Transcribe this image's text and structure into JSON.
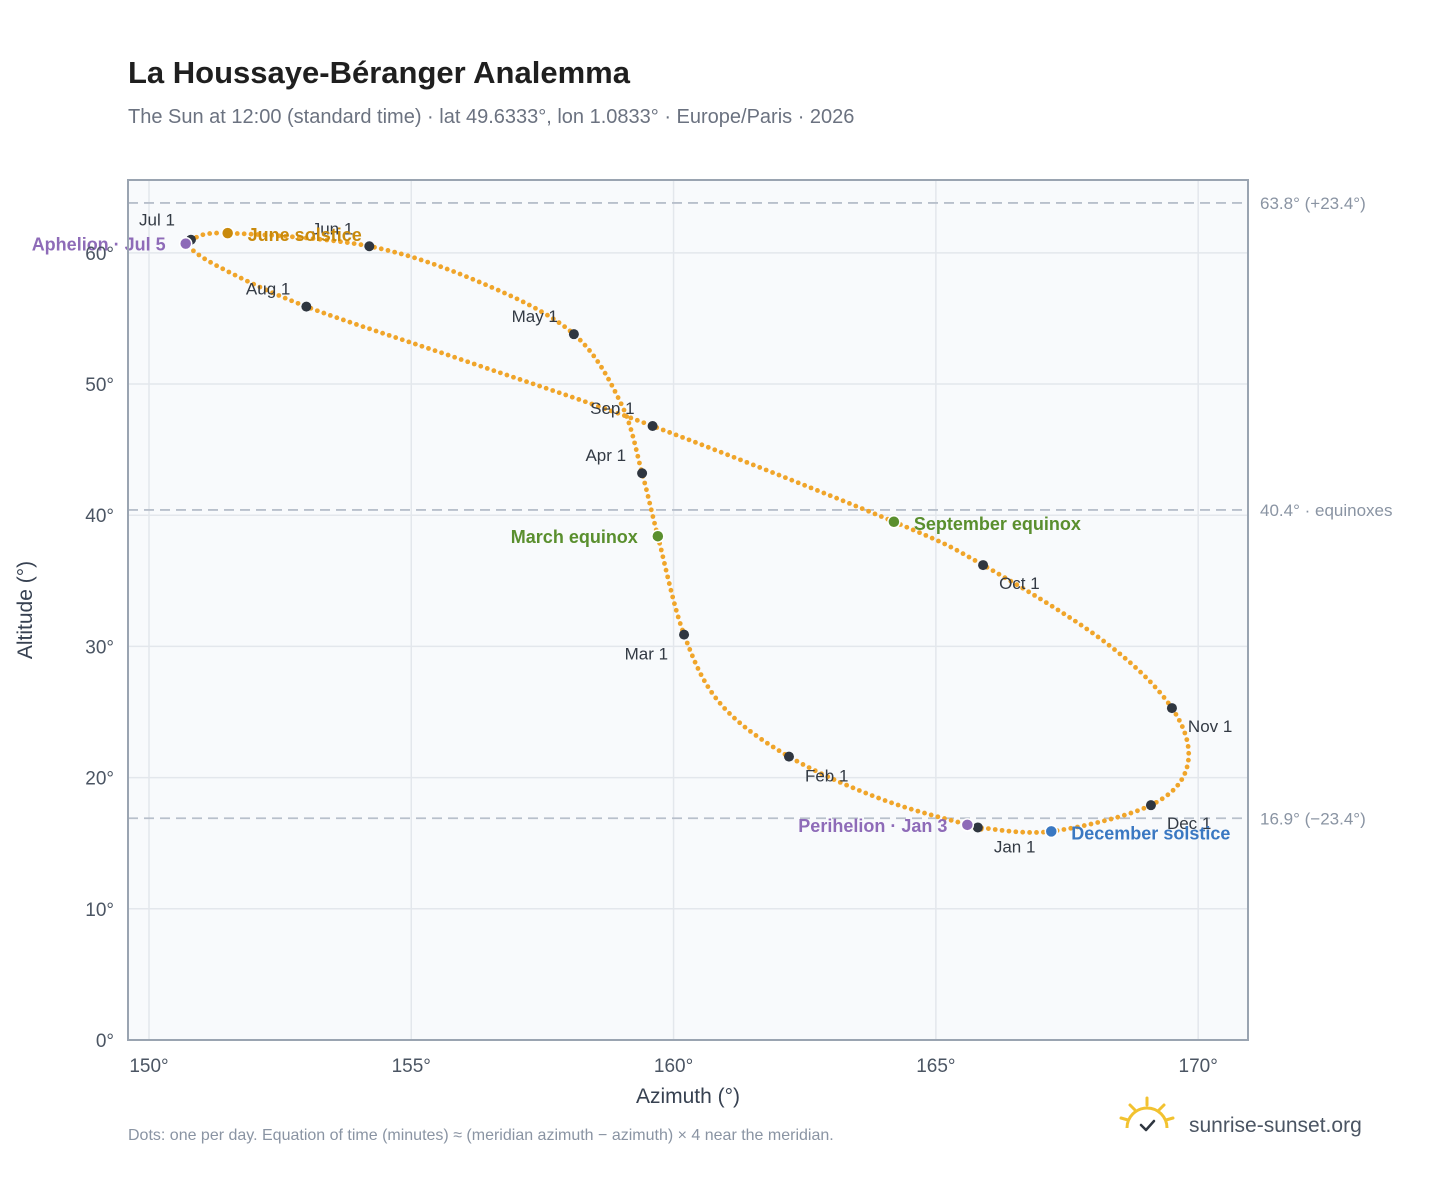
{
  "title": "La Houssaye-Béranger Analemma",
  "subtitle": "The Sun at 12:00 (standard time) · lat 49.6333°, lon 1.0833° · Europe/Paris · 2026",
  "footnote": "Dots: one per day. Equation of time (minutes) ≈ (meridian azimuth − azimuth) × 4 near the meridian.",
  "brand": {
    "name": "sunrise-sunset.org",
    "icon": "sun-logo-icon"
  },
  "colors": {
    "path": "#f0a52a",
    "month_dot": "#2f3640",
    "equinox": "#5a8f2e",
    "solstice_june": "#c98a0c",
    "solstice_december": "#3a78c2",
    "apsis": "#8e6bb8",
    "grid": "#e3e7ec",
    "plot_bg": "#f8fafc",
    "frame": "#9aa4b1",
    "reference_line": "#b8c0cb"
  },
  "chart_data": {
    "type": "scatter",
    "xlabel": "Azimuth (°)",
    "ylabel": "Altitude (°)",
    "xlim": [
      149.6,
      170.95
    ],
    "ylim": [
      0,
      65.55
    ],
    "xticks": [
      150,
      155,
      160,
      165,
      170
    ],
    "yticks": [
      0,
      10,
      20,
      30,
      40,
      50,
      60
    ],
    "x_tick_labels": [
      "150°",
      "155°",
      "160°",
      "165°",
      "170°"
    ],
    "y_tick_labels": [
      "0°",
      "10°",
      "20°",
      "30°",
      "40°",
      "50°",
      "60°"
    ],
    "grid": true,
    "reference_lines": [
      {
        "altitude": 63.8,
        "label": "63.8° (+23.4°)"
      },
      {
        "altitude": 40.4,
        "label": "40.4° · equinoxes"
      },
      {
        "altitude": 16.9,
        "label": "16.9° (−23.4°)"
      }
    ],
    "month_points": [
      {
        "label": "Jan 1",
        "date": "2026-01-01",
        "azimuth": 165.8,
        "altitude": 16.2
      },
      {
        "label": "Feb 1",
        "date": "2026-02-01",
        "azimuth": 162.2,
        "altitude": 21.6
      },
      {
        "label": "Mar 1",
        "date": "2026-03-01",
        "azimuth": 160.2,
        "altitude": 30.9
      },
      {
        "label": "Apr 1",
        "date": "2026-04-01",
        "azimuth": 159.4,
        "altitude": 43.2
      },
      {
        "label": "May 1",
        "date": "2026-05-01",
        "azimuth": 158.1,
        "altitude": 53.8
      },
      {
        "label": "Jun 1",
        "date": "2026-06-01",
        "azimuth": 154.2,
        "altitude": 60.5
      },
      {
        "label": "Jul 1",
        "date": "2026-07-01",
        "azimuth": 150.8,
        "altitude": 61.0
      },
      {
        "label": "Aug 1",
        "date": "2026-08-01",
        "azimuth": 153.0,
        "altitude": 55.9
      },
      {
        "label": "Sep 1",
        "date": "2026-09-01",
        "azimuth": 159.6,
        "altitude": 46.8
      },
      {
        "label": "Oct 1",
        "date": "2026-10-01",
        "azimuth": 165.9,
        "altitude": 36.2
      },
      {
        "label": "Nov 1",
        "date": "2026-11-01",
        "azimuth": 169.5,
        "altitude": 25.3
      },
      {
        "label": "Dec 1",
        "date": "2026-12-01",
        "azimuth": 169.1,
        "altitude": 17.9
      }
    ],
    "events": [
      {
        "label": "March equinox",
        "kind": "equinox",
        "azimuth": 159.7,
        "altitude": 38.4
      },
      {
        "label": "June solstice",
        "kind": "solstice_june",
        "azimuth": 151.5,
        "altitude": 61.5
      },
      {
        "label": "September equinox",
        "kind": "equinox",
        "azimuth": 164.2,
        "altitude": 39.5
      },
      {
        "label": "December solstice",
        "kind": "solstice_december",
        "azimuth": 167.2,
        "altitude": 15.9
      },
      {
        "label": "Perihelion · Jan 3",
        "kind": "apsis",
        "azimuth": 165.6,
        "altitude": 16.4
      },
      {
        "label": "Aphelion · Jul 5",
        "kind": "apsis",
        "azimuth": 150.7,
        "altitude": 60.7
      }
    ],
    "path_samples": [
      {
        "date": "2026-01-01",
        "azimuth": 165.8,
        "altitude": 16.2
      },
      {
        "date": "2026-01-15",
        "azimuth": 164.0,
        "altitude": 18.3
      },
      {
        "date": "2026-02-01",
        "azimuth": 162.2,
        "altitude": 21.6
      },
      {
        "date": "2026-02-15",
        "azimuth": 160.9,
        "altitude": 25.6
      },
      {
        "date": "2026-03-01",
        "azimuth": 160.2,
        "altitude": 30.9
      },
      {
        "date": "2026-03-20",
        "azimuth": 159.7,
        "altitude": 38.4
      },
      {
        "date": "2026-04-01",
        "azimuth": 159.4,
        "altitude": 43.2
      },
      {
        "date": "2026-04-15",
        "azimuth": 159.0,
        "altitude": 48.5
      },
      {
        "date": "2026-05-01",
        "azimuth": 158.1,
        "altitude": 53.8
      },
      {
        "date": "2026-05-15",
        "azimuth": 156.4,
        "altitude": 57.6
      },
      {
        "date": "2026-06-01",
        "azimuth": 154.2,
        "altitude": 60.5
      },
      {
        "date": "2026-06-21",
        "azimuth": 151.5,
        "altitude": 61.5
      },
      {
        "date": "2026-07-01",
        "azimuth": 150.8,
        "altitude": 61.0
      },
      {
        "date": "2026-07-05",
        "azimuth": 150.7,
        "altitude": 60.7
      },
      {
        "date": "2026-07-15",
        "azimuth": 151.3,
        "altitude": 59.0
      },
      {
        "date": "2026-08-01",
        "azimuth": 153.0,
        "altitude": 55.9
      },
      {
        "date": "2026-08-15",
        "azimuth": 156.0,
        "altitude": 51.8
      },
      {
        "date": "2026-09-01",
        "azimuth": 159.6,
        "altitude": 46.8
      },
      {
        "date": "2026-09-23",
        "azimuth": 164.2,
        "altitude": 39.5
      },
      {
        "date": "2026-10-01",
        "azimuth": 165.9,
        "altitude": 36.2
      },
      {
        "date": "2026-10-15",
        "azimuth": 168.2,
        "altitude": 30.4
      },
      {
        "date": "2026-11-01",
        "azimuth": 169.5,
        "altitude": 25.3
      },
      {
        "date": "2026-11-15",
        "azimuth": 169.8,
        "altitude": 21.0
      },
      {
        "date": "2026-12-01",
        "azimuth": 169.1,
        "altitude": 17.9
      },
      {
        "date": "2026-12-21",
        "azimuth": 167.2,
        "altitude": 15.9
      },
      {
        "date": "2026-12-31",
        "azimuth": 165.8,
        "altitude": 16.2
      }
    ]
  }
}
